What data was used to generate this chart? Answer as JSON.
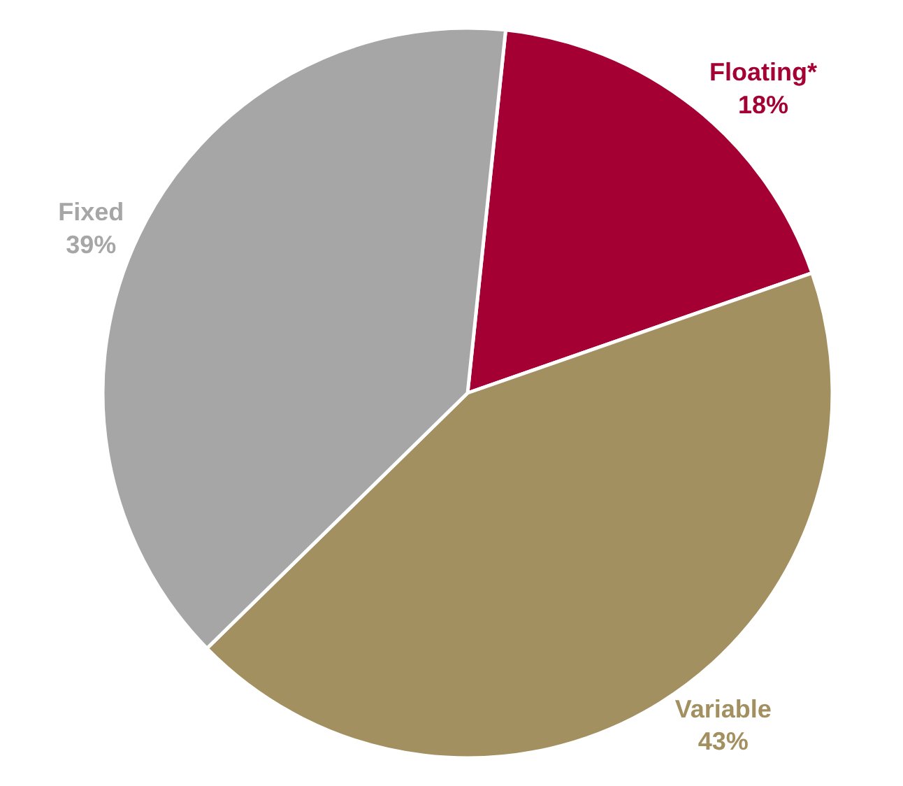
{
  "chart_data": {
    "type": "pie",
    "categories": [
      "Floating*",
      "Variable",
      "Fixed"
    ],
    "values": [
      18,
      43,
      39
    ],
    "value_labels": [
      "18%",
      "43%",
      "39%"
    ],
    "colors": [
      "#a50034",
      "#a39060",
      "#a6a6a6"
    ],
    "legend": false
  }
}
